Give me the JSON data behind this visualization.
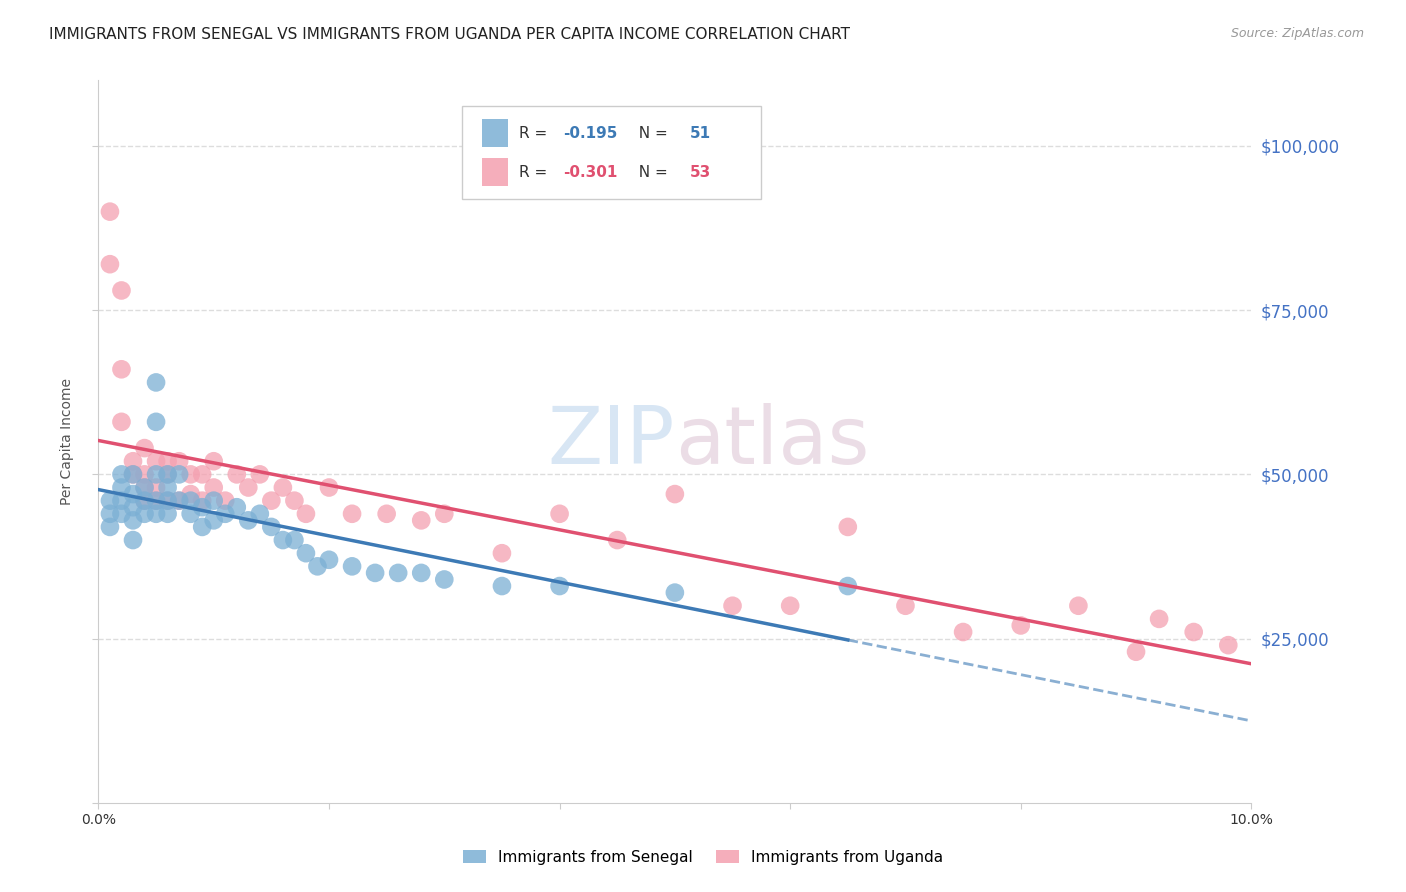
{
  "title": "IMMIGRANTS FROM SENEGAL VS IMMIGRANTS FROM UGANDA PER CAPITA INCOME CORRELATION CHART",
  "source": "Source: ZipAtlas.com",
  "ylabel": "Per Capita Income",
  "xlim": [
    0,
    0.1
  ],
  "ylim": [
    0,
    110000
  ],
  "yticks": [
    0,
    25000,
    50000,
    75000,
    100000
  ],
  "ytick_labels": [
    "",
    "$25,000",
    "$50,000",
    "$75,000",
    "$100,000"
  ],
  "xticks": [
    0.0,
    0.02,
    0.04,
    0.06,
    0.08,
    0.1
  ],
  "xtick_labels": [
    "0.0%",
    "",
    "",
    "",
    "",
    "10.0%"
  ],
  "senegal_R": -0.195,
  "senegal_N": 51,
  "uganda_R": -0.301,
  "uganda_N": 53,
  "senegal_color": "#7bafd4",
  "uganda_color": "#f4a0b0",
  "senegal_line_color": "#3d7ab5",
  "uganda_line_color": "#e05070",
  "watermark": "ZIPatlas",
  "background_color": "#ffffff",
  "grid_color": "#dddddd",
  "title_fontsize": 11,
  "tick_label_color_right": "#4472c4",
  "senegal_x": [
    0.001,
    0.001,
    0.001,
    0.002,
    0.002,
    0.002,
    0.002,
    0.003,
    0.003,
    0.003,
    0.003,
    0.003,
    0.004,
    0.004,
    0.004,
    0.005,
    0.005,
    0.005,
    0.005,
    0.005,
    0.006,
    0.006,
    0.006,
    0.006,
    0.007,
    0.007,
    0.008,
    0.008,
    0.009,
    0.009,
    0.01,
    0.01,
    0.011,
    0.012,
    0.013,
    0.014,
    0.015,
    0.016,
    0.017,
    0.018,
    0.019,
    0.02,
    0.022,
    0.024,
    0.026,
    0.028,
    0.03,
    0.035,
    0.04,
    0.05,
    0.065
  ],
  "senegal_y": [
    46000,
    44000,
    42000,
    50000,
    48000,
    46000,
    44000,
    50000,
    47000,
    45000,
    43000,
    40000,
    48000,
    46000,
    44000,
    64000,
    58000,
    50000,
    46000,
    44000,
    50000,
    48000,
    46000,
    44000,
    50000,
    46000,
    46000,
    44000,
    45000,
    42000,
    46000,
    43000,
    44000,
    45000,
    43000,
    44000,
    42000,
    40000,
    40000,
    38000,
    36000,
    37000,
    36000,
    35000,
    35000,
    35000,
    34000,
    33000,
    33000,
    32000,
    33000
  ],
  "uganda_x": [
    0.001,
    0.001,
    0.002,
    0.002,
    0.002,
    0.003,
    0.003,
    0.004,
    0.004,
    0.004,
    0.004,
    0.005,
    0.005,
    0.005,
    0.006,
    0.006,
    0.006,
    0.007,
    0.007,
    0.008,
    0.008,
    0.009,
    0.009,
    0.01,
    0.01,
    0.011,
    0.012,
    0.013,
    0.014,
    0.015,
    0.016,
    0.017,
    0.018,
    0.02,
    0.022,
    0.025,
    0.028,
    0.03,
    0.035,
    0.04,
    0.045,
    0.05,
    0.055,
    0.06,
    0.065,
    0.07,
    0.075,
    0.08,
    0.085,
    0.09,
    0.092,
    0.095,
    0.098
  ],
  "uganda_y": [
    90000,
    82000,
    78000,
    66000,
    58000,
    52000,
    50000,
    54000,
    50000,
    48000,
    46000,
    52000,
    48000,
    46000,
    52000,
    50000,
    46000,
    52000,
    46000,
    50000,
    47000,
    50000,
    46000,
    52000,
    48000,
    46000,
    50000,
    48000,
    50000,
    46000,
    48000,
    46000,
    44000,
    48000,
    44000,
    44000,
    43000,
    44000,
    38000,
    44000,
    40000,
    47000,
    30000,
    30000,
    42000,
    30000,
    26000,
    27000,
    30000,
    23000,
    28000,
    26000,
    24000
  ]
}
